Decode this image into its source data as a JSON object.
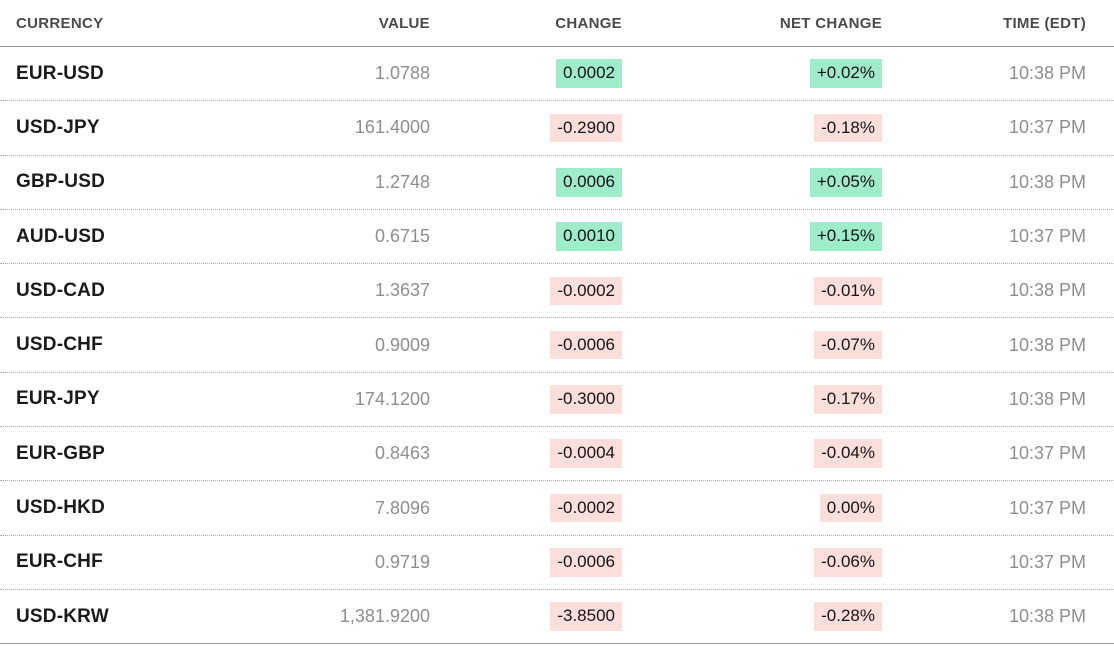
{
  "table": {
    "columns": [
      {
        "label": "CURRENCY",
        "align": "left"
      },
      {
        "label": "VALUE",
        "align": "right"
      },
      {
        "label": "CHANGE",
        "align": "right"
      },
      {
        "label": "NET CHANGE",
        "align": "right"
      },
      {
        "label": "TIME (EDT)",
        "align": "right"
      }
    ],
    "rows": [
      {
        "currency": "EUR-USD",
        "value": "1.0788",
        "change": "0.0002",
        "net_change": "+0.02%",
        "time": "10:38 PM",
        "direction": "up"
      },
      {
        "currency": "USD-JPY",
        "value": "161.4000",
        "change": "-0.2900",
        "net_change": "-0.18%",
        "time": "10:37 PM",
        "direction": "down"
      },
      {
        "currency": "GBP-USD",
        "value": "1.2748",
        "change": "0.0006",
        "net_change": "+0.05%",
        "time": "10:38 PM",
        "direction": "up"
      },
      {
        "currency": "AUD-USD",
        "value": "0.6715",
        "change": "0.0010",
        "net_change": "+0.15%",
        "time": "10:37 PM",
        "direction": "up"
      },
      {
        "currency": "USD-CAD",
        "value": "1.3637",
        "change": "-0.0002",
        "net_change": "-0.01%",
        "time": "10:38 PM",
        "direction": "down"
      },
      {
        "currency": "USD-CHF",
        "value": "0.9009",
        "change": "-0.0006",
        "net_change": "-0.07%",
        "time": "10:38 PM",
        "direction": "down"
      },
      {
        "currency": "EUR-JPY",
        "value": "174.1200",
        "change": "-0.3000",
        "net_change": "-0.17%",
        "time": "10:38 PM",
        "direction": "down"
      },
      {
        "currency": "EUR-GBP",
        "value": "0.8463",
        "change": "-0.0004",
        "net_change": "-0.04%",
        "time": "10:37 PM",
        "direction": "down"
      },
      {
        "currency": "USD-HKD",
        "value": "7.8096",
        "change": "-0.0002",
        "net_change": "0.00%",
        "time": "10:37 PM",
        "direction": "down"
      },
      {
        "currency": "EUR-CHF",
        "value": "0.9719",
        "change": "-0.0006",
        "net_change": "-0.06%",
        "time": "10:37 PM",
        "direction": "down"
      },
      {
        "currency": "USD-KRW",
        "value": "1,381.9200",
        "change": "-3.8500",
        "net_change": "-0.28%",
        "time": "10:38 PM",
        "direction": "down"
      }
    ]
  },
  "colors": {
    "up_bg": "#9fecca",
    "down_bg": "#fcdedb",
    "header_text": "#4a4a4a",
    "muted_text": "#8e8e8e",
    "strong_text": "#1a1a1a",
    "hl_text": "#141414",
    "rule": "#9b9b9b",
    "dotted": "#ababab"
  },
  "chart_data": {
    "type": "table",
    "title": "",
    "columns": [
      "CURRENCY",
      "VALUE",
      "CHANGE",
      "NET CHANGE",
      "TIME (EDT)"
    ],
    "rows": [
      [
        "EUR-USD",
        "1.0788",
        "0.0002",
        "+0.02%",
        "10:38 PM"
      ],
      [
        "USD-JPY",
        "161.4000",
        "-0.2900",
        "-0.18%",
        "10:37 PM"
      ],
      [
        "GBP-USD",
        "1.2748",
        "0.0006",
        "+0.05%",
        "10:38 PM"
      ],
      [
        "AUD-USD",
        "0.6715",
        "0.0010",
        "+0.15%",
        "10:37 PM"
      ],
      [
        "USD-CAD",
        "1.3637",
        "-0.0002",
        "-0.01%",
        "10:38 PM"
      ],
      [
        "USD-CHF",
        "0.9009",
        "-0.0006",
        "-0.07%",
        "10:38 PM"
      ],
      [
        "EUR-JPY",
        "174.1200",
        "-0.3000",
        "-0.17%",
        "10:38 PM"
      ],
      [
        "EUR-GBP",
        "0.8463",
        "-0.0004",
        "-0.04%",
        "10:37 PM"
      ],
      [
        "USD-HKD",
        "7.8096",
        "-0.0002",
        "0.00%",
        "10:37 PM"
      ],
      [
        "EUR-CHF",
        "0.9719",
        "-0.0006",
        "-0.06%",
        "10:37 PM"
      ],
      [
        "USD-KRW",
        "1,381.9200",
        "-3.8500",
        "-0.28%",
        "10:38 PM"
      ]
    ]
  }
}
